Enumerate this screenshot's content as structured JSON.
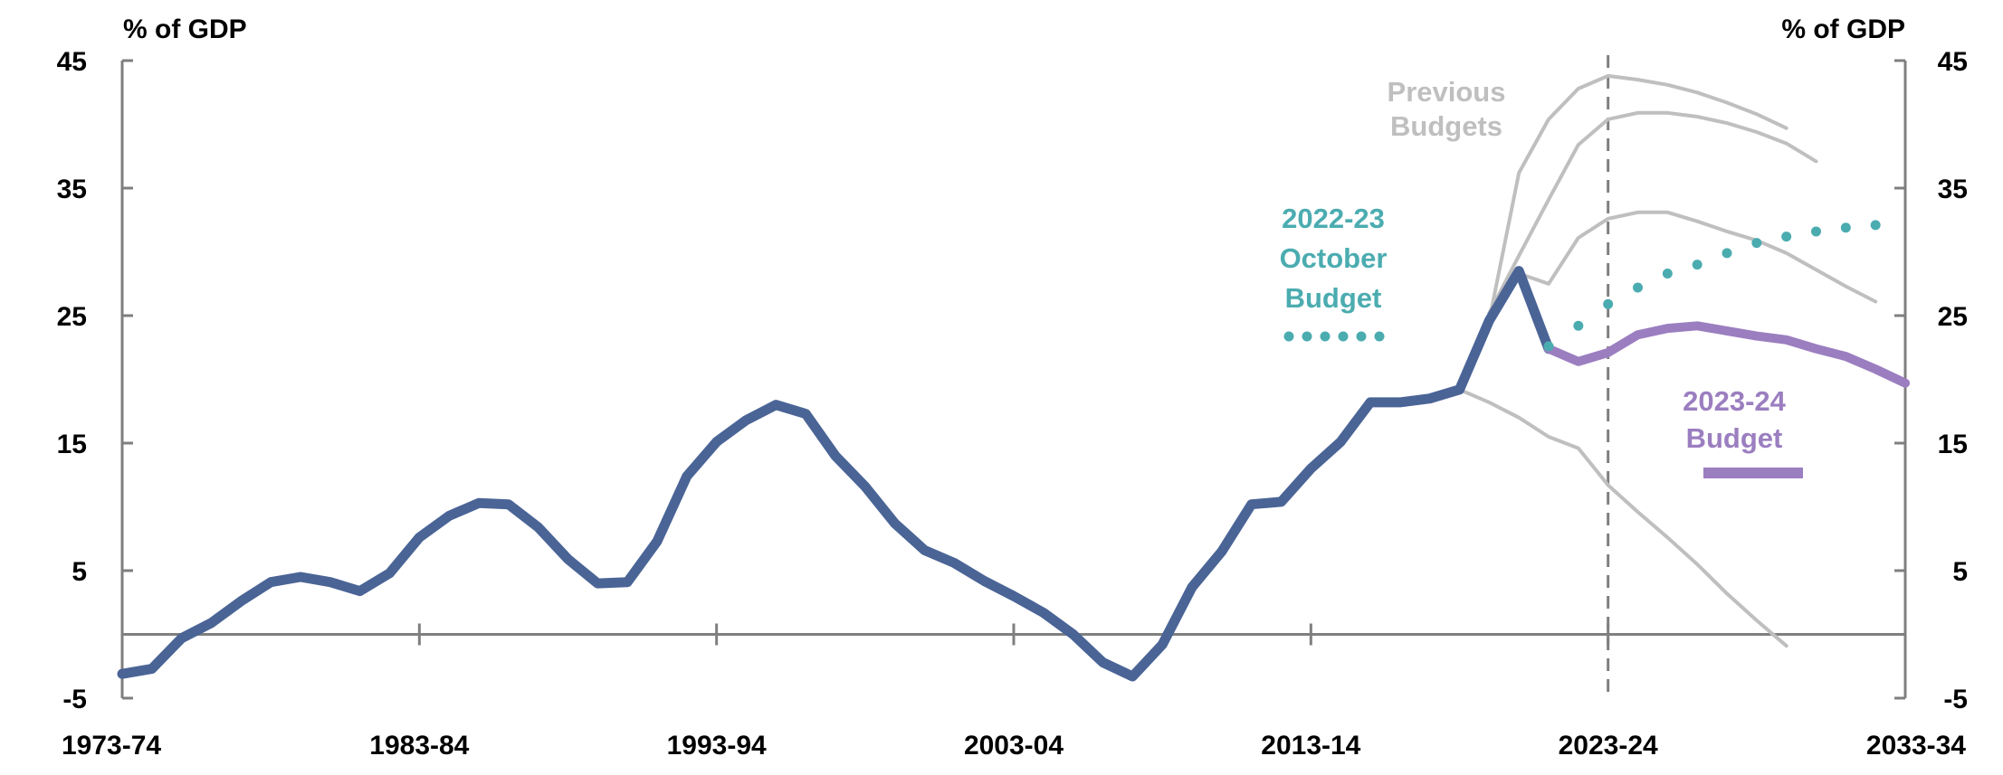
{
  "chart_data": {
    "type": "line",
    "ylabel_left": "% of GDP",
    "ylabel_right": "% of GDP",
    "ylim": [
      -5,
      45
    ],
    "yticks": [
      -5,
      5,
      15,
      25,
      35,
      45
    ],
    "xticks": [
      "1973-74",
      "1983-84",
      "1993-94",
      "2003-04",
      "2013-14",
      "2023-24",
      "2033-34"
    ],
    "zero_line": true,
    "vertical_marker": "2023-24",
    "series": [
      {
        "name": "",
        "role": "actual",
        "color": "#4a6496",
        "x": [
          1973,
          1974,
          1975,
          1976,
          1977,
          1978,
          1979,
          1980,
          1981,
          1982,
          1983,
          1984,
          1985,
          1986,
          1987,
          1988,
          1989,
          1990,
          1991,
          1992,
          1993,
          1994,
          1995,
          1996,
          1997,
          1998,
          1999,
          2000,
          2001,
          2002,
          2003,
          2004,
          2005,
          2006,
          2007,
          2008,
          2009,
          2010,
          2011,
          2012,
          2013,
          2014,
          2015,
          2016,
          2017,
          2018,
          2019,
          2020,
          2021
        ],
        "values": [
          -3.1,
          -2.7,
          -0.3,
          0.9,
          2.6,
          4.1,
          4.5,
          4.1,
          3.4,
          4.8,
          7.6,
          9.3,
          10.3,
          10.2,
          8.4,
          5.9,
          4,
          4.1,
          7.3,
          12.4,
          15.1,
          16.8,
          18,
          17.3,
          14,
          11.6,
          8.7,
          6.6,
          5.6,
          4.2,
          3,
          1.7,
          0,
          -2.2,
          -3.3,
          -0.8,
          3.7,
          6.5,
          10.2,
          10.4,
          13,
          15.1,
          18.2,
          18.2,
          18.5,
          19.2,
          24.6,
          28.5,
          22.4
        ]
      },
      {
        "name": "2023-24 Budget",
        "color": "#9b7ec0",
        "x": [
          2021,
          2022,
          2023,
          2024,
          2025,
          2026,
          2027,
          2028,
          2029,
          2030,
          2031,
          2032,
          2033
        ],
        "values": [
          22.4,
          21.4,
          22.1,
          23.5,
          24,
          24.2,
          23.8,
          23.4,
          23.1,
          22.4,
          21.8,
          20.8,
          19.7
        ]
      },
      {
        "name": "2022-23 October Budget",
        "color": "#4bacb0",
        "style": "dotted",
        "x": [
          2021,
          2022,
          2023,
          2024,
          2025,
          2026,
          2027,
          2028,
          2029,
          2030,
          2031,
          2032
        ],
        "values": [
          22.6,
          24.2,
          25.9,
          27.2,
          28.3,
          29,
          29.9,
          30.7,
          31.2,
          31.6,
          31.9,
          32.1
        ]
      },
      {
        "name": "Previous Budgets",
        "color": "#bfbfbf",
        "x": [
          2019,
          2020,
          2021,
          2022,
          2023,
          2024,
          2025,
          2026,
          2027,
          2028,
          2029
        ],
        "values": [
          24.6,
          36.2,
          40.4,
          42.8,
          43.8,
          43.5,
          43.1,
          42.5,
          41.7,
          40.8,
          39.7
        ]
      },
      {
        "name": "Previous Budgets",
        "color": "#bfbfbf",
        "x": [
          2019,
          2020,
          2021,
          2022,
          2023,
          2024,
          2025,
          2026,
          2027,
          2028,
          2029,
          2030
        ],
        "values": [
          25.2,
          29.7,
          34.1,
          38.4,
          40.4,
          40.9,
          40.9,
          40.6,
          40.1,
          39.4,
          38.5,
          37.1
        ]
      },
      {
        "name": "Previous Budgets",
        "color": "#bfbfbf",
        "x": [
          2020,
          2021,
          2022,
          2023,
          2024,
          2025,
          2026,
          2027,
          2028,
          2029,
          2030,
          2031,
          2032
        ],
        "values": [
          28.3,
          27.5,
          31.1,
          32.6,
          33.1,
          33.1,
          32.4,
          31.6,
          30.9,
          29.9,
          28.6,
          27.3,
          26.1
        ]
      },
      {
        "name": "Previous Budgets",
        "color": "#bfbfbf",
        "x": [
          2018,
          2019,
          2020,
          2021,
          2022,
          2023,
          2024,
          2025,
          2026,
          2027,
          2028,
          2029
        ],
        "values": [
          19.2,
          18.2,
          17,
          15.5,
          14.6,
          11.7,
          9.6,
          7.6,
          5.5,
          3.2,
          1.1,
          -0.9
        ]
      }
    ],
    "annotations": [
      {
        "id": "previous",
        "lines": [
          "Previous",
          "Budgets"
        ],
        "color": "#bfbfbf"
      },
      {
        "id": "october",
        "lines": [
          "2022-23",
          "October",
          "Budget"
        ],
        "color": "#4bacb0"
      },
      {
        "id": "budget2324",
        "lines": [
          "2023-24",
          "Budget"
        ],
        "color": "#9b7ec0"
      }
    ],
    "colors": {
      "axis": "#7f7f7f",
      "marker": "#7f7f7f"
    }
  }
}
